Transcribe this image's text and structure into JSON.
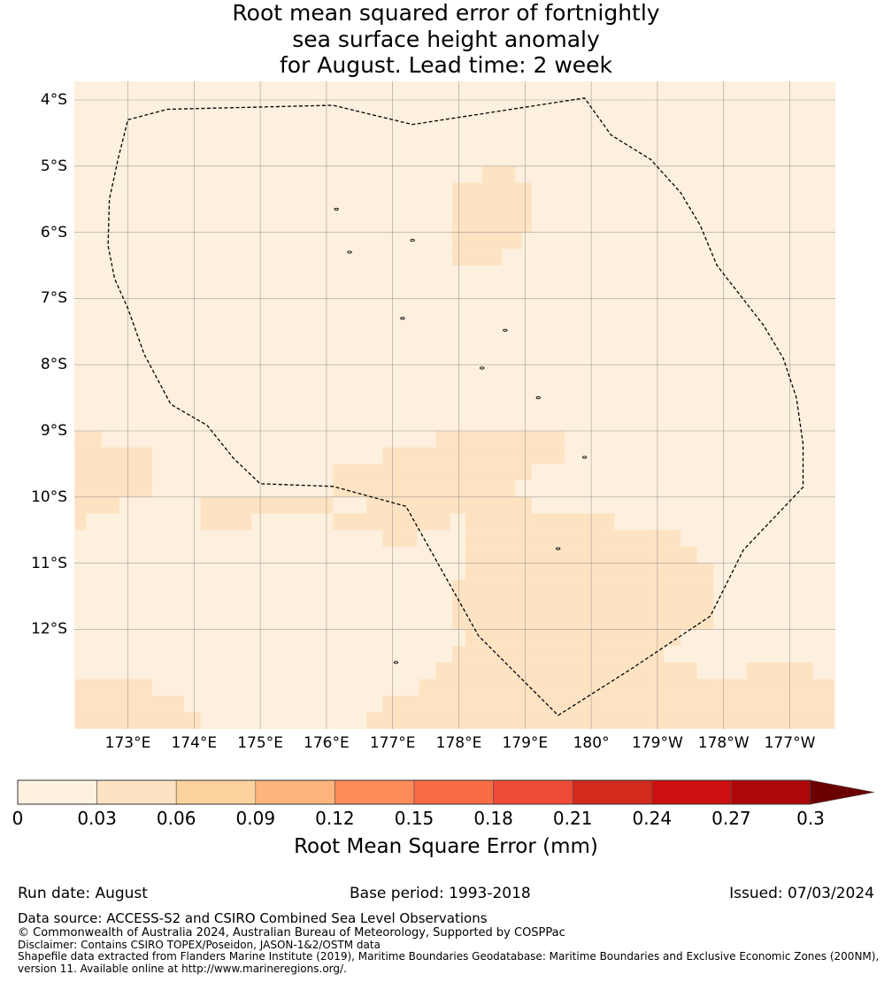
{
  "title": {
    "line1": "Root mean squared error of fortnightly",
    "line2": "sea surface height anomaly",
    "line3": "for August. Lead time: 2 week"
  },
  "map": {
    "lat_ticks": [
      {
        "value": -4,
        "label": "4°S"
      },
      {
        "value": -5,
        "label": "5°S"
      },
      {
        "value": -6,
        "label": "6°S"
      },
      {
        "value": -7,
        "label": "7°S"
      },
      {
        "value": -8,
        "label": "8°S"
      },
      {
        "value": -9,
        "label": "9°S"
      },
      {
        "value": -10,
        "label": "10°S"
      },
      {
        "value": -11,
        "label": "11°S"
      },
      {
        "value": -12,
        "label": "12°S"
      }
    ],
    "lon_ticks": [
      {
        "value": 173,
        "label": "173°E"
      },
      {
        "value": 174,
        "label": "174°E"
      },
      {
        "value": 175,
        "label": "175°E"
      },
      {
        "value": 176,
        "label": "176°E"
      },
      {
        "value": 177,
        "label": "177°E"
      },
      {
        "value": 178,
        "label": "178°E"
      },
      {
        "value": 179,
        "label": "179°E"
      },
      {
        "value": 180,
        "label": "180°"
      },
      {
        "value": 181,
        "label": "179°W"
      },
      {
        "value": 182,
        "label": "178°W"
      },
      {
        "value": 183,
        "label": "177°W"
      }
    ],
    "extent": {
      "lon_min": 172.2,
      "lon_max": 183.67,
      "lat_min": -13.5,
      "lat_max": -3.7
    },
    "background_color": "#fef0de",
    "eez_boundary": [
      [
        173.0,
        -4.3
      ],
      [
        173.6,
        -4.14
      ],
      [
        176.1,
        -4.08
      ],
      [
        177.3,
        -4.37
      ],
      [
        179.9,
        -3.97
      ],
      [
        180.3,
        -4.53
      ],
      [
        180.9,
        -4.9
      ],
      [
        181.35,
        -5.4
      ],
      [
        181.65,
        -5.9
      ],
      [
        181.9,
        -6.5
      ],
      [
        182.6,
        -7.4
      ],
      [
        182.9,
        -7.9
      ],
      [
        183.1,
        -8.5
      ],
      [
        183.2,
        -9.2
      ],
      [
        183.2,
        -9.85
      ],
      [
        182.3,
        -10.8
      ],
      [
        181.8,
        -11.8
      ],
      [
        180.6,
        -12.6
      ],
      [
        179.5,
        -13.3
      ],
      [
        178.3,
        -12.1
      ],
      [
        177.2,
        -10.14
      ],
      [
        176.1,
        -9.84
      ],
      [
        175.0,
        -9.8
      ],
      [
        174.6,
        -9.42
      ],
      [
        174.2,
        -8.92
      ],
      [
        173.65,
        -8.6
      ],
      [
        173.25,
        -7.85
      ],
      [
        173.0,
        -7.15
      ],
      [
        172.8,
        -6.7
      ],
      [
        172.7,
        -6.2
      ],
      [
        172.72,
        -5.5
      ],
      [
        172.85,
        -4.9
      ],
      [
        173.0,
        -4.3
      ]
    ],
    "islands": [
      [
        176.15,
        -5.65
      ],
      [
        176.35,
        -6.3
      ],
      [
        177.3,
        -6.12
      ],
      [
        177.15,
        -7.3
      ],
      [
        178.7,
        -7.48
      ],
      [
        178.35,
        -8.05
      ],
      [
        179.2,
        -8.5
      ],
      [
        179.9,
        -9.4
      ],
      [
        179.5,
        -10.78
      ],
      [
        177.05,
        -12.5
      ]
    ],
    "cells": [
      {
        "lon0": 177.9,
        "lon1": 179.1,
        "lat0": -5.25,
        "lat1": -6.0,
        "v": 0.035
      },
      {
        "lon0": 178.35,
        "lon1": 178.85,
        "lat0": -5.0,
        "lat1": -5.25,
        "v": 0.035
      },
      {
        "lon0": 177.9,
        "lon1": 178.95,
        "lat0": -6.0,
        "lat1": -6.25,
        "v": 0.035
      },
      {
        "lon0": 177.9,
        "lon1": 178.65,
        "lat0": -6.25,
        "lat1": -6.5,
        "v": 0.035
      },
      {
        "lon0": 172.2,
        "lon1": 172.6,
        "lat0": -9.0,
        "lat1": -9.25,
        "v": 0.035
      },
      {
        "lon0": 172.2,
        "lon1": 173.37,
        "lat0": -9.25,
        "lat1": -10.0,
        "v": 0.035
      },
      {
        "lon0": 172.2,
        "lon1": 172.87,
        "lat0": -10.0,
        "lat1": -10.25,
        "v": 0.035
      },
      {
        "lon0": 172.2,
        "lon1": 172.37,
        "lat0": -10.25,
        "lat1": -10.5,
        "v": 0.035
      },
      {
        "lon0": 177.65,
        "lon1": 179.6,
        "lat0": -9.0,
        "lat1": -9.25,
        "v": 0.035
      },
      {
        "lon0": 176.85,
        "lon1": 179.6,
        "lat0": -9.25,
        "lat1": -9.5,
        "v": 0.035
      },
      {
        "lon0": 176.1,
        "lon1": 179.1,
        "lat0": -9.5,
        "lat1": -9.75,
        "v": 0.035
      },
      {
        "lon0": 176.1,
        "lon1": 178.85,
        "lat0": -9.75,
        "lat1": -10.0,
        "v": 0.035
      },
      {
        "lon0": 176.6,
        "lon1": 179.1,
        "lat0": -10.0,
        "lat1": -10.25,
        "v": 0.035
      },
      {
        "lon0": 174.1,
        "lon1": 176.1,
        "lat0": -10.0,
        "lat1": -10.25,
        "v": 0.035
      },
      {
        "lon0": 174.1,
        "lon1": 174.87,
        "lat0": -10.25,
        "lat1": -10.5,
        "v": 0.035
      },
      {
        "lon0": 176.1,
        "lon1": 180.35,
        "lat0": -10.25,
        "lat1": -10.25,
        "v": 0.035
      },
      {
        "lon0": 176.1,
        "lon1": 177.87,
        "lat0": -10.25,
        "lat1": -10.5,
        "v": 0.035
      },
      {
        "lon0": 176.85,
        "lon1": 177.37,
        "lat0": -10.5,
        "lat1": -10.75,
        "v": 0.035
      },
      {
        "lon0": 178.1,
        "lon1": 179.1,
        "lat0": -10.25,
        "lat1": -10.5,
        "v": 0.035
      },
      {
        "lon0": 179.1,
        "lon1": 180.35,
        "lat0": -10.25,
        "lat1": -10.5,
        "v": 0.035
      },
      {
        "lon0": 178.1,
        "lon1": 181.35,
        "lat0": -10.5,
        "lat1": -10.75,
        "v": 0.035
      },
      {
        "lon0": 178.1,
        "lon1": 181.6,
        "lat0": -10.75,
        "lat1": -11.0,
        "v": 0.035
      },
      {
        "lon0": 178.1,
        "lon1": 181.85,
        "lat0": -11.0,
        "lat1": -11.25,
        "v": 0.035
      },
      {
        "lon0": 177.9,
        "lon1": 181.85,
        "lat0": -11.25,
        "lat1": -12.0,
        "v": 0.035
      },
      {
        "lon0": 178.1,
        "lon1": 181.35,
        "lat0": -12.0,
        "lat1": -12.25,
        "v": 0.035
      },
      {
        "lon0": 177.9,
        "lon1": 181.1,
        "lat0": -12.25,
        "lat1": -12.5,
        "v": 0.035
      },
      {
        "lon0": 177.65,
        "lon1": 181.6,
        "lat0": -12.5,
        "lat1": -12.75,
        "v": 0.035
      },
      {
        "lon0": 177.4,
        "lon1": 183.67,
        "lat0": -12.75,
        "lat1": -12.75,
        "v": 0.035
      },
      {
        "lon0": 177.4,
        "lon1": 181.85,
        "lat0": -12.75,
        "lat1": -13.0,
        "v": 0.035
      },
      {
        "lon0": 182.35,
        "lon1": 183.35,
        "lat0": -12.5,
        "lat1": -12.75,
        "v": 0.035
      },
      {
        "lon0": 182.35,
        "lon1": 183.67,
        "lat0": -12.75,
        "lat1": -12.75,
        "v": 0.035
      },
      {
        "lon0": 181.85,
        "lon1": 183.67,
        "lat0": -12.75,
        "lat1": -13.0,
        "v": 0.035
      },
      {
        "lon0": 176.85,
        "lon1": 183.67,
        "lat0": -13.0,
        "lat1": -13.25,
        "v": 0.035
      },
      {
        "lon0": 176.6,
        "lon1": 183.67,
        "lat0": -13.25,
        "lat1": -13.5,
        "v": 0.035
      },
      {
        "lon0": 172.2,
        "lon1": 173.37,
        "lat0": -12.75,
        "lat1": -13.0,
        "v": 0.035
      },
      {
        "lon0": 172.2,
        "lon1": 173.85,
        "lat0": -13.0,
        "lat1": -13.25,
        "v": 0.035
      },
      {
        "lon0": 172.2,
        "lon1": 174.1,
        "lat0": -13.25,
        "lat1": -13.5,
        "v": 0.035
      }
    ]
  },
  "colorbar": {
    "bounds": [
      0,
      0.03,
      0.06,
      0.09,
      0.12,
      0.15,
      0.18,
      0.21,
      0.24,
      0.27,
      0.3
    ],
    "tick_labels": [
      "0",
      "0.03",
      "0.06",
      "0.09",
      "0.12",
      "0.15",
      "0.18",
      "0.21",
      "0.24",
      "0.27",
      "0.3"
    ],
    "colors": [
      "#fff1df",
      "#fee3c3",
      "#fdd39d",
      "#fdb57c",
      "#fc8c58",
      "#fb6b48",
      "#f04b36",
      "#d22a1d",
      "#cc1010",
      "#af0707",
      "#6b0000"
    ],
    "extend": "max",
    "label": "Root Mean Square Error (mm)"
  },
  "footer": {
    "run_date": "Run date: August",
    "base_period": "Base period: 1993-2018",
    "issued": "Issued: 07/03/2024",
    "data_source": "Data source: ACCESS-S2 and CSIRO Combined Sea Level Observations",
    "copyright": "© Commonwealth of Australia 2024, Australian Bureau of Meteorology, Supported by COSPPac",
    "disclaimer": "Disclaimer: Contains CSIRO TOPEX/Poseidon, JASON-1&2/OSTM data",
    "shapefile1": "Shapefile data extracted from Flanders Marine Institute (2019), Maritime Boundaries Geodatabase: Maritime Boundaries and Exclusive Economic Zones (200NM),",
    "shapefile2": "version 11. Available online at http://www.marineregions.org/."
  }
}
